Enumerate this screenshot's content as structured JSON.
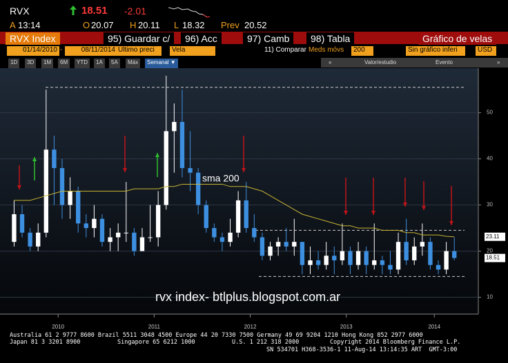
{
  "header": {
    "ticker": "RVX",
    "last": "18.51",
    "change": "-2.01",
    "fields": [
      {
        "label": "A",
        "value": "13:14"
      },
      {
        "label": "O",
        "value": "20.07"
      },
      {
        "label": "H",
        "value": "20.11"
      },
      {
        "label": "L",
        "value": "18.32"
      },
      {
        "label": "Prev",
        "value": "20.52"
      }
    ]
  },
  "toolbar": {
    "security": "RVX Index",
    "tabs": [
      "95) Guardar c/",
      "96) Acc",
      "97) Camb",
      "98) Tabla"
    ],
    "chart_name": "Gráfico de velas",
    "start_date": "01/14/2010",
    "end_date": "08/11/2014",
    "field": "Último preci",
    "style": "Vela",
    "compare": "11) Comparar",
    "ma_label": "Meds móvs",
    "ma_period": "200",
    "lower": "Sin gráfico inferi",
    "currency": "USD",
    "ranges": [
      "1D",
      "3D",
      "1M",
      "6M",
      "YTD",
      "1A",
      "5A",
      "Máx",
      "Semanal ▼"
    ],
    "study": "Valor/estudio",
    "event": "Evento"
  },
  "chart_data": {
    "type": "candlestick",
    "categories": [
      null,
      null,
      null,
      null,
      null,
      null,
      null,
      null,
      null,
      null,
      null,
      null,
      null,
      null,
      null,
      null,
      null,
      null,
      null,
      null,
      null,
      null,
      null,
      null,
      null,
      null,
      null,
      null,
      null,
      null,
      null,
      null,
      null,
      null,
      null,
      null,
      null,
      null,
      null,
      null,
      null,
      null,
      null,
      null,
      null,
      null,
      null,
      null,
      null,
      null,
      null,
      null,
      null,
      null,
      null,
      null
    ],
    "open": [
      22,
      28,
      24,
      21,
      24,
      42,
      38,
      30,
      33,
      26,
      25,
      27,
      22,
      23,
      24,
      24,
      20,
      23,
      23,
      30,
      46,
      48,
      38,
      37,
      30,
      25,
      23,
      22,
      24,
      31,
      25,
      23,
      19,
      21,
      22,
      21,
      22,
      17,
      18,
      17,
      19,
      18,
      20,
      17,
      20,
      17,
      18,
      17,
      16,
      22,
      18,
      21,
      22,
      17,
      16,
      20
    ],
    "high": [
      31,
      30,
      25,
      26,
      55,
      45,
      40,
      36,
      34,
      28,
      30,
      28,
      25,
      26,
      35,
      25,
      25,
      30,
      33,
      58,
      52,
      55,
      46,
      38,
      31,
      26,
      24,
      27,
      33,
      35,
      28,
      24,
      22,
      23,
      25,
      27,
      22,
      21,
      20,
      22,
      21,
      26,
      21,
      22,
      21,
      26,
      19,
      20,
      24,
      27,
      23,
      26,
      23,
      18,
      22,
      23
    ],
    "low": [
      21,
      23,
      20,
      20,
      23,
      30,
      27,
      27,
      24,
      23,
      23,
      21,
      20,
      20,
      22,
      19,
      20,
      22,
      21,
      29,
      37,
      36,
      33,
      28,
      24,
      22,
      20,
      21,
      23,
      24,
      22,
      18,
      18,
      19,
      20,
      19,
      15,
      15,
      16,
      16,
      15,
      17,
      15,
      16,
      15,
      16,
      15,
      15,
      15,
      17,
      17,
      19,
      16,
      15,
      15,
      18
    ],
    "close": [
      28,
      24,
      21,
      24,
      42,
      38,
      30,
      33,
      26,
      25,
      27,
      22,
      23,
      24,
      24,
      20,
      23,
      23,
      30,
      46,
      48,
      38,
      37,
      30,
      25,
      23,
      22,
      24,
      31,
      25,
      23,
      19,
      21,
      22,
      21,
      22,
      17,
      18,
      17,
      19,
      18,
      20,
      17,
      20,
      17,
      18,
      17,
      16,
      22,
      18,
      21,
      22,
      17,
      16,
      20,
      18.51
    ],
    "up_color": "#ffffff",
    "down_color": "#3d8fe0",
    "sma": {
      "name": "sma 200",
      "color": "#c9b533",
      "values": [
        31,
        31,
        31,
        31.5,
        32,
        32.5,
        33,
        33,
        33,
        33,
        33,
        33,
        33,
        33,
        33,
        33.5,
        33.5,
        33.5,
        33.5,
        34,
        34,
        34.5,
        34.5,
        34.5,
        34.5,
        34.5,
        34.5,
        34,
        34,
        34,
        33.5,
        33,
        32,
        31,
        30,
        29,
        28,
        27.5,
        27,
        26.5,
        26,
        25.5,
        25.5,
        25,
        25,
        25,
        24.5,
        24.5,
        24.5,
        24,
        24,
        23.5,
        23.5,
        23.5,
        23.2,
        23.11
      ]
    },
    "levels": [
      55.5,
      24.5,
      14.5
    ],
    "price_tags": [
      23.11,
      18.51
    ],
    "annotation": "rvx index- btlplus.blogspot.com.ar",
    "xlim": [
      -0.9,
      58
    ],
    "ylim": [
      6.5,
      59.5
    ],
    "xticks": [
      {
        "value": 5.5,
        "label": "2010"
      },
      {
        "value": 17.5,
        "label": "2011"
      },
      {
        "value": 29.5,
        "label": "2012"
      },
      {
        "value": 41.5,
        "label": "2013"
      },
      {
        "value": 52.5,
        "label": "2014"
      }
    ],
    "yticks": [
      10,
      20,
      30,
      40,
      50
    ],
    "grid": true
  },
  "footer": {
    "line1": "Australia 61 2 9777 8600 Brazil 5511 3048 4500 Europe 44 20 7330 7500 Germany 49 69 9204 1210 Hong Kong 852 2977 6000",
    "line2": [
      "Japan 81 3 3201 8900",
      "Singapore 65 6212 1000",
      "U.S. 1 212 318 2000",
      "Copyright 2014 Bloomberg Finance L.P."
    ],
    "line3": "SN 534701 H368-3536-1 11-Aug-14 13:14:35 ART  GMT-3:00"
  }
}
